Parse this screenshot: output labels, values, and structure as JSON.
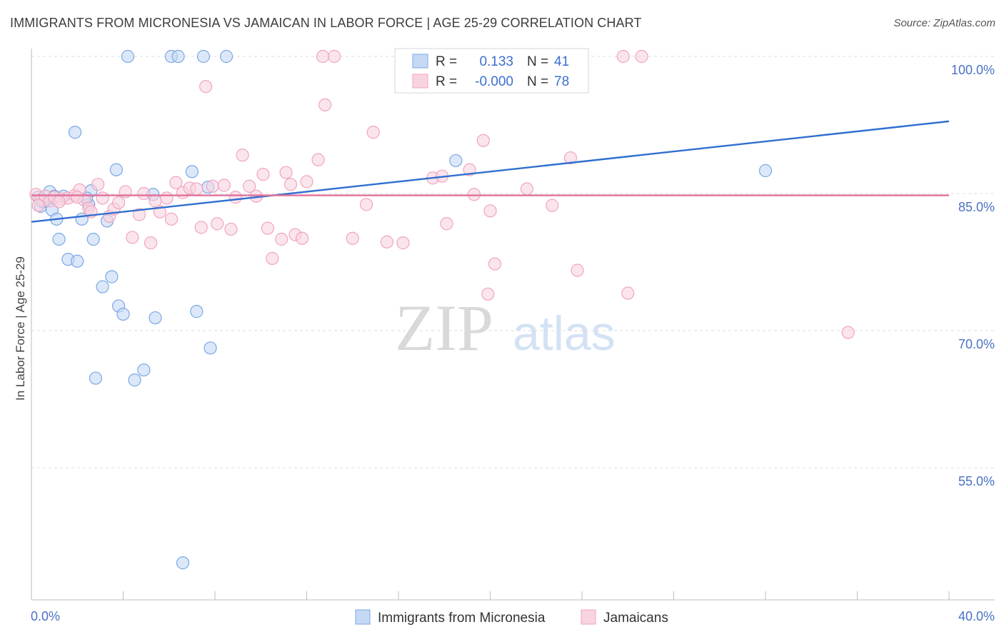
{
  "header": {
    "title": "IMMIGRANTS FROM MICRONESIA VS JAMAICAN IN LABOR FORCE | AGE 25-29 CORRELATION CHART",
    "source": "Source: ZipAtlas.com"
  },
  "watermark": {
    "zip": "ZIP",
    "atlas": "atlas"
  },
  "legend": {
    "rows": [
      {
        "r_label": "R =",
        "r_value": "0.133",
        "n_label": "N =",
        "n_value": "41"
      },
      {
        "r_label": "R =",
        "r_value": "-0.000",
        "n_label": "N =",
        "n_value": "78"
      }
    ]
  },
  "chart_data": {
    "type": "scatter",
    "xlabel": "",
    "ylabel": "In Labor Force | Age 25-29",
    "xlim": [
      0,
      40
    ],
    "ylim": [
      42.5,
      101.5
    ],
    "x_tick_labels": [
      "0.0%",
      "40.0%"
    ],
    "y_ticks": [
      {
        "value": 100,
        "label": "100.0%"
      },
      {
        "value": 85,
        "label": "85.0%"
      },
      {
        "value": 70,
        "label": "70.0%"
      },
      {
        "value": 55,
        "label": "55.0%"
      }
    ],
    "grid": "horizontal dashed",
    "legend_position": "top-center",
    "series": [
      {
        "name": "Immigrants from Micronesia",
        "color": "#7ba7e3",
        "fill": "#c5d9f5",
        "trend": {
          "x": [
            0,
            40
          ],
          "y": [
            81.9,
            92.9
          ]
        },
        "points": [
          [
            0.3,
            84.6
          ],
          [
            0.4,
            83.6
          ],
          [
            0.6,
            84.2
          ],
          [
            0.8,
            85.2
          ],
          [
            0.9,
            83.2
          ],
          [
            1.1,
            82.2
          ],
          [
            1.2,
            80.0
          ],
          [
            1.4,
            84.7
          ],
          [
            1.6,
            77.8
          ],
          [
            2.0,
            77.6
          ],
          [
            1.9,
            91.7
          ],
          [
            2.2,
            82.2
          ],
          [
            2.5,
            83.8
          ],
          [
            2.6,
            85.3
          ],
          [
            2.7,
            80.0
          ],
          [
            3.1,
            74.8
          ],
          [
            3.3,
            82.0
          ],
          [
            3.5,
            75.9
          ],
          [
            3.7,
            87.6
          ],
          [
            3.8,
            72.7
          ],
          [
            4.0,
            71.8
          ],
          [
            2.8,
            64.8
          ],
          [
            4.5,
            64.6
          ],
          [
            4.9,
            65.7
          ],
          [
            5.4,
            71.4
          ],
          [
            5.3,
            84.9
          ],
          [
            4.2,
            100.0
          ],
          [
            6.1,
            100.0
          ],
          [
            6.4,
            100.0
          ],
          [
            7.5,
            100.0
          ],
          [
            8.5,
            100.0
          ],
          [
            7.0,
            87.4
          ],
          [
            7.7,
            85.7
          ],
          [
            7.2,
            72.1
          ],
          [
            7.8,
            68.1
          ],
          [
            6.6,
            44.6
          ],
          [
            18.5,
            88.6
          ],
          [
            32.0,
            87.5
          ],
          [
            0.5,
            84.1
          ],
          [
            1.0,
            84.7
          ],
          [
            2.4,
            84.5
          ]
        ]
      },
      {
        "name": "Jamaicans",
        "color": "#f0a5bf",
        "fill": "#f8d3e0",
        "trend": {
          "x": [
            0,
            40
          ],
          "y": [
            84.8,
            84.8
          ]
        },
        "points": [
          [
            0.2,
            84.9
          ],
          [
            0.4,
            84.3
          ],
          [
            0.6,
            84.7
          ],
          [
            0.8,
            84.2
          ],
          [
            1.0,
            84.6
          ],
          [
            1.3,
            84.4
          ],
          [
            1.6,
            84.5
          ],
          [
            1.9,
            84.8
          ],
          [
            2.1,
            85.4
          ],
          [
            2.3,
            84.3
          ],
          [
            2.5,
            83.4
          ],
          [
            2.6,
            83.0
          ],
          [
            2.9,
            86.0
          ],
          [
            3.1,
            84.5
          ],
          [
            3.4,
            82.5
          ],
          [
            3.6,
            83.3
          ],
          [
            3.8,
            84.0
          ],
          [
            4.1,
            85.2
          ],
          [
            4.4,
            80.2
          ],
          [
            4.7,
            82.7
          ],
          [
            4.9,
            85.0
          ],
          [
            5.2,
            79.6
          ],
          [
            5.4,
            84.2
          ],
          [
            5.6,
            83.0
          ],
          [
            5.9,
            84.5
          ],
          [
            6.1,
            82.2
          ],
          [
            6.3,
            86.2
          ],
          [
            6.6,
            85.1
          ],
          [
            6.9,
            85.6
          ],
          [
            7.2,
            85.5
          ],
          [
            7.4,
            81.3
          ],
          [
            7.6,
            96.7
          ],
          [
            7.9,
            85.8
          ],
          [
            8.1,
            81.7
          ],
          [
            8.4,
            85.9
          ],
          [
            8.7,
            81.1
          ],
          [
            8.9,
            84.6
          ],
          [
            9.2,
            89.2
          ],
          [
            9.5,
            85.8
          ],
          [
            9.8,
            84.7
          ],
          [
            10.1,
            87.1
          ],
          [
            10.3,
            81.2
          ],
          [
            10.5,
            77.9
          ],
          [
            10.9,
            80.0
          ],
          [
            11.1,
            87.3
          ],
          [
            11.3,
            86.0
          ],
          [
            11.5,
            80.5
          ],
          [
            11.8,
            80.1
          ],
          [
            12.0,
            86.3
          ],
          [
            12.5,
            88.7
          ],
          [
            12.8,
            94.7
          ],
          [
            12.7,
            100.0
          ],
          [
            13.2,
            100.0
          ],
          [
            14.0,
            80.1
          ],
          [
            14.6,
            83.8
          ],
          [
            14.9,
            91.7
          ],
          [
            15.5,
            79.7
          ],
          [
            16.2,
            79.6
          ],
          [
            17.5,
            86.7
          ],
          [
            17.9,
            86.9
          ],
          [
            18.1,
            81.7
          ],
          [
            19.1,
            87.6
          ],
          [
            19.3,
            84.9
          ],
          [
            19.7,
            90.8
          ],
          [
            19.9,
            74.0
          ],
          [
            20.0,
            83.1
          ],
          [
            20.2,
            77.3
          ],
          [
            21.6,
            85.5
          ],
          [
            22.7,
            83.7
          ],
          [
            23.5,
            88.9
          ],
          [
            23.8,
            76.6
          ],
          [
            25.8,
            100.0
          ],
          [
            26.6,
            100.0
          ],
          [
            26.0,
            74.1
          ],
          [
            35.6,
            69.8
          ],
          [
            0.3,
            83.7
          ],
          [
            1.2,
            84.1
          ],
          [
            2.0,
            84.6
          ]
        ]
      }
    ]
  }
}
